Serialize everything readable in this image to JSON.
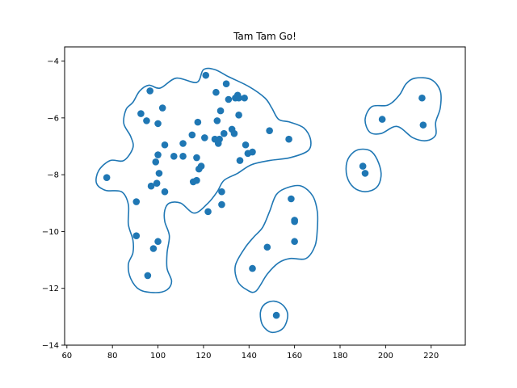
{
  "chart_data": {
    "type": "scatter",
    "title": "Tam Tam Go!",
    "xlabel": "",
    "ylabel": "",
    "xlim": [
      59,
      235
    ],
    "ylim": [
      -14,
      -3.5
    ],
    "xticks": [
      60,
      80,
      100,
      120,
      140,
      160,
      180,
      200,
      220
    ],
    "yticks": [
      -14,
      -12,
      -10,
      -8,
      -6,
      -4
    ],
    "grid": false,
    "legend": "none",
    "point_color": "#1f77b4",
    "contour_color": "#1f77b4",
    "points": [
      {
        "x": 77.5,
        "y": -8.1
      },
      {
        "x": 90.5,
        "y": -8.95
      },
      {
        "x": 90.5,
        "y": -10.15
      },
      {
        "x": 92.5,
        "y": -5.85
      },
      {
        "x": 95,
        "y": -6.1
      },
      {
        "x": 96.5,
        "y": -5.05
      },
      {
        "x": 95.5,
        "y": -11.55
      },
      {
        "x": 97,
        "y": -8.4
      },
      {
        "x": 98,
        "y": -10.6
      },
      {
        "x": 99,
        "y": -7.55
      },
      {
        "x": 99.5,
        "y": -8.3
      },
      {
        "x": 100,
        "y": -6.2
      },
      {
        "x": 100,
        "y": -7.3
      },
      {
        "x": 100.5,
        "y": -7.95
      },
      {
        "x": 100,
        "y": -10.35
      },
      {
        "x": 102,
        "y": -5.65
      },
      {
        "x": 103,
        "y": -6.95
      },
      {
        "x": 103,
        "y": -8.6
      },
      {
        "x": 107,
        "y": -7.35
      },
      {
        "x": 111,
        "y": -7.35
      },
      {
        "x": 111,
        "y": -6.9
      },
      {
        "x": 115,
        "y": -6.6
      },
      {
        "x": 115.5,
        "y": -8.25
      },
      {
        "x": 117,
        "y": -8.2
      },
      {
        "x": 117,
        "y": -7.4
      },
      {
        "x": 117.5,
        "y": -6.15
      },
      {
        "x": 118,
        "y": -7.8
      },
      {
        "x": 119,
        "y": -7.7
      },
      {
        "x": 120.5,
        "y": -6.7
      },
      {
        "x": 121,
        "y": -4.5
      },
      {
        "x": 122,
        "y": -9.3
      },
      {
        "x": 125,
        "y": -6.75
      },
      {
        "x": 125.5,
        "y": -5.1
      },
      {
        "x": 126,
        "y": -6.1
      },
      {
        "x": 126.5,
        "y": -6.9
      },
      {
        "x": 127,
        "y": -6.75
      },
      {
        "x": 127.5,
        "y": -5.75
      },
      {
        "x": 128,
        "y": -8.6
      },
      {
        "x": 128,
        "y": -9.05
      },
      {
        "x": 129,
        "y": -6.55
      },
      {
        "x": 130,
        "y": -4.8
      },
      {
        "x": 131,
        "y": -5.35
      },
      {
        "x": 132.5,
        "y": -6.4
      },
      {
        "x": 133.5,
        "y": -6.55
      },
      {
        "x": 134,
        "y": -5.3
      },
      {
        "x": 135,
        "y": -5.2
      },
      {
        "x": 135.5,
        "y": -5.3
      },
      {
        "x": 135.5,
        "y": -5.9
      },
      {
        "x": 136,
        "y": -7.5
      },
      {
        "x": 138,
        "y": -5.3
      },
      {
        "x": 138.5,
        "y": -6.95
      },
      {
        "x": 139.5,
        "y": -7.25
      },
      {
        "x": 141.5,
        "y": -7.2
      },
      {
        "x": 141.5,
        "y": -11.3
      },
      {
        "x": 148,
        "y": -10.55
      },
      {
        "x": 149,
        "y": -6.45
      },
      {
        "x": 152,
        "y": -12.95
      },
      {
        "x": 157.5,
        "y": -6.75
      },
      {
        "x": 158.5,
        "y": -8.85
      },
      {
        "x": 160,
        "y": -9.6
      },
      {
        "x": 160,
        "y": -9.65
      },
      {
        "x": 160,
        "y": -10.35
      },
      {
        "x": 190,
        "y": -7.7
      },
      {
        "x": 191,
        "y": -7.95
      },
      {
        "x": 198.5,
        "y": -6.05
      },
      {
        "x": 216,
        "y": -5.3
      },
      {
        "x": 216.5,
        "y": -6.25
      }
    ],
    "contours": [
      [
        [
          101,
          -4.95
        ],
        [
          108,
          -4.6
        ],
        [
          117,
          -4.75
        ],
        [
          120,
          -4.3
        ],
        [
          125,
          -4.3
        ],
        [
          131,
          -4.55
        ],
        [
          140,
          -4.9
        ],
        [
          147,
          -5.3
        ],
        [
          150,
          -5.65
        ],
        [
          153,
          -6.05
        ],
        [
          158,
          -6.15
        ],
        [
          164,
          -6.35
        ],
        [
          167,
          -6.75
        ],
        [
          166,
          -7.15
        ],
        [
          158,
          -7.4
        ],
        [
          149,
          -7.5
        ],
        [
          141,
          -7.65
        ],
        [
          135,
          -7.95
        ],
        [
          129,
          -8.2
        ],
        [
          126,
          -8.6
        ],
        [
          122,
          -9.0
        ],
        [
          116,
          -9.35
        ],
        [
          110,
          -9.0
        ],
        [
          105,
          -9.0
        ],
        [
          103,
          -9.25
        ],
        [
          103,
          -9.65
        ],
        [
          105,
          -10.15
        ],
        [
          104,
          -10.75
        ],
        [
          104,
          -11.3
        ],
        [
          106,
          -11.75
        ],
        [
          104,
          -12.05
        ],
        [
          99,
          -12.15
        ],
        [
          92,
          -12.05
        ],
        [
          88,
          -11.65
        ],
        [
          87,
          -11.15
        ],
        [
          89,
          -10.75
        ],
        [
          89,
          -10.3
        ],
        [
          87,
          -9.75
        ],
        [
          87,
          -9.05
        ],
        [
          84,
          -8.6
        ],
        [
          77,
          -8.55
        ],
        [
          73,
          -8.3
        ],
        [
          74,
          -7.85
        ],
        [
          79,
          -7.5
        ],
        [
          85,
          -7.5
        ],
        [
          89,
          -7.05
        ],
        [
          88,
          -6.65
        ],
        [
          85,
          -6.2
        ],
        [
          86,
          -5.7
        ],
        [
          89,
          -5.45
        ],
        [
          92,
          -5.05
        ],
        [
          96,
          -4.85
        ]
      ],
      [
        [
          157,
          -8.45
        ],
        [
          163,
          -8.4
        ],
        [
          168,
          -8.75
        ],
        [
          170,
          -9.3
        ],
        [
          170,
          -9.9
        ],
        [
          169,
          -10.5
        ],
        [
          165,
          -10.95
        ],
        [
          158,
          -10.95
        ],
        [
          153,
          -11.1
        ],
        [
          148,
          -11.5
        ],
        [
          143,
          -12.1
        ],
        [
          139,
          -12.05
        ],
        [
          135,
          -11.75
        ],
        [
          134,
          -11.2
        ],
        [
          138,
          -10.6
        ],
        [
          142,
          -10.2
        ],
        [
          146,
          -9.85
        ],
        [
          149,
          -9.3
        ],
        [
          152,
          -8.7
        ]
      ],
      [
        [
          190,
          -7.1
        ],
        [
          194,
          -7.2
        ],
        [
          197,
          -7.6
        ],
        [
          198,
          -8.05
        ],
        [
          196,
          -8.45
        ],
        [
          191,
          -8.6
        ],
        [
          186,
          -8.45
        ],
        [
          183,
          -8.05
        ],
        [
          183,
          -7.55
        ],
        [
          186,
          -7.2
        ]
      ],
      [
        [
          213,
          -4.6
        ],
        [
          220,
          -4.65
        ],
        [
          224,
          -5.05
        ],
        [
          224,
          -5.65
        ],
        [
          222,
          -6.15
        ],
        [
          222,
          -6.6
        ],
        [
          218,
          -6.8
        ],
        [
          212,
          -6.7
        ],
        [
          205,
          -6.3
        ],
        [
          198,
          -6.55
        ],
        [
          193,
          -6.5
        ],
        [
          191,
          -6.05
        ],
        [
          194,
          -5.6
        ],
        [
          201,
          -5.55
        ],
        [
          206,
          -5.2
        ],
        [
          209,
          -4.8
        ]
      ],
      [
        [
          151,
          -12.45
        ],
        [
          155,
          -12.6
        ],
        [
          157,
          -12.95
        ],
        [
          155,
          -13.4
        ],
        [
          150,
          -13.55
        ],
        [
          146,
          -13.3
        ],
        [
          145,
          -12.85
        ],
        [
          147,
          -12.55
        ]
      ]
    ]
  }
}
